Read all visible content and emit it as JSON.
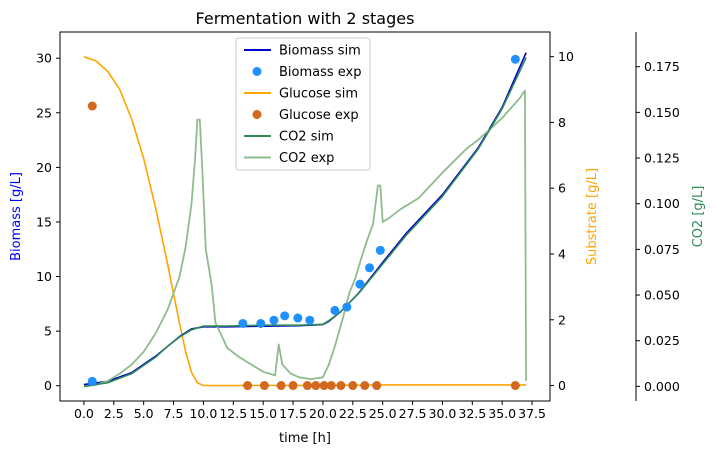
{
  "chart_data": {
    "type": "line",
    "title": "Fermentation with 2 stages",
    "xlabel": "time [h]",
    "xlim": [
      -2,
      39
    ],
    "x_ticks": [
      0.0,
      2.5,
      5.0,
      7.5,
      10.0,
      12.5,
      15.0,
      17.5,
      20.0,
      22.5,
      25.0,
      27.5,
      30.0,
      32.5,
      35.0,
      37.5
    ],
    "x_tick_labels": [
      "0.0",
      "2.5",
      "5.0",
      "7.5",
      "10.0",
      "12.5",
      "15.0",
      "17.5",
      "20.0",
      "22.5",
      "25.0",
      "27.5",
      "30.0",
      "32.5",
      "35.0",
      "37.5"
    ],
    "axes": [
      {
        "id": "biomass",
        "label": "Biomass [g/L]",
        "color": "#0000ff",
        "position": "left",
        "ylim": [
          -1.4,
          32.4
        ],
        "ticks": [
          0,
          5,
          10,
          15,
          20,
          25,
          30
        ],
        "tick_labels": [
          "0",
          "5",
          "10",
          "15",
          "20",
          "25",
          "30"
        ]
      },
      {
        "id": "substrate",
        "label": "Substrate [g/L]",
        "color": "#ffa500",
        "position": "right",
        "ylim": [
          -0.47,
          10.75
        ],
        "ticks": [
          0,
          2,
          4,
          6,
          8,
          10
        ],
        "tick_labels": [
          "0",
          "2",
          "4",
          "6",
          "8",
          "10"
        ]
      },
      {
        "id": "co2",
        "label": "CO2 [g/L]",
        "color": "#2e8b57",
        "position": "right-outer",
        "ylim": [
          -0.008,
          0.194
        ],
        "ticks": [
          0.0,
          0.025,
          0.05,
          0.075,
          0.1,
          0.125,
          0.15,
          0.175
        ],
        "tick_labels": [
          "0.000",
          "0.025",
          "0.050",
          "0.075",
          "0.100",
          "0.125",
          "0.150",
          "0.175"
        ]
      }
    ],
    "series": [
      {
        "name": "Biomass sim",
        "kind": "line",
        "axis": "biomass",
        "color": "#0000cd",
        "x": [
          0,
          2,
          4,
          6,
          7,
          8,
          9,
          10,
          12,
          15,
          18,
          20,
          20.5,
          21.5,
          23,
          25,
          27,
          30,
          33,
          35,
          37
        ],
        "y": [
          0.1,
          0.4,
          1.2,
          2.7,
          3.6,
          4.5,
          5.2,
          5.4,
          5.4,
          5.45,
          5.5,
          5.6,
          5.9,
          6.8,
          8.5,
          11.3,
          14.0,
          17.5,
          21.8,
          25.5,
          30.5
        ]
      },
      {
        "name": "Biomass exp",
        "kind": "scatter",
        "axis": "biomass",
        "color": "#1e90ff",
        "x": [
          0.7,
          13.3,
          14.8,
          15.9,
          16.8,
          17.9,
          18.9,
          21.0,
          22.0,
          23.1,
          23.9,
          24.8,
          36.1
        ],
        "y": [
          0.4,
          5.7,
          5.7,
          6.0,
          6.4,
          6.2,
          6.0,
          6.9,
          7.2,
          9.3,
          10.8,
          12.4,
          29.9
        ]
      },
      {
        "name": "Glucose sim",
        "kind": "line",
        "axis": "substrate",
        "color": "#ffa500",
        "x": [
          0,
          1,
          2,
          3,
          4,
          5,
          6,
          7,
          7.5,
          8,
          8.5,
          9,
          9.5,
          10,
          15,
          20,
          25,
          30,
          37
        ],
        "y": [
          10.0,
          9.87,
          9.55,
          9.0,
          8.1,
          6.9,
          5.4,
          3.7,
          2.8,
          1.9,
          1.05,
          0.4,
          0.08,
          0.0,
          0.0,
          0.0,
          0.02,
          0.02,
          0.02
        ]
      },
      {
        "name": "Glucose exp",
        "kind": "scatter",
        "axis": "substrate",
        "color": "#d2691e",
        "x": [
          0.7,
          13.7,
          15.1,
          16.5,
          17.5,
          18.7,
          19.4,
          20.1,
          20.7,
          21.5,
          22.5,
          23.5,
          24.5,
          36.1
        ],
        "y": [
          8.5,
          0.0,
          0.0,
          0.0,
          0.0,
          0.0,
          0.0,
          0.0,
          0.0,
          0.0,
          0.0,
          0.0,
          0.0,
          0.0
        ]
      },
      {
        "name": "CO2 sim",
        "kind": "line",
        "axis": "co2",
        "color": "#2e8b57",
        "x": [
          0,
          2,
          4,
          6,
          7,
          8,
          9,
          10,
          12,
          15,
          18,
          20,
          20.5,
          21.5,
          23,
          25,
          27,
          30,
          33,
          35,
          37
        ],
        "y": [
          0.0,
          0.002,
          0.007,
          0.016,
          0.022,
          0.027,
          0.031,
          0.033,
          0.033,
          0.0335,
          0.0335,
          0.034,
          0.036,
          0.041,
          0.051,
          0.067,
          0.083,
          0.104,
          0.13,
          0.152,
          0.18
        ]
      },
      {
        "name": "CO2 exp",
        "kind": "line",
        "axis": "co2",
        "color": "#8fbc8f",
        "x": [
          0,
          1,
          2,
          3,
          4,
          5,
          6,
          7,
          8,
          8.5,
          9,
          9.3,
          9.5,
          9.7,
          9.9,
          10.2,
          10.7,
          11,
          12,
          13,
          14,
          15,
          16,
          16.3,
          16.6,
          17.3,
          18,
          19,
          20,
          20.5,
          21,
          21.7,
          22.2,
          22.7,
          23.2,
          23.7,
          24.2,
          24.6,
          24.8,
          25,
          25.5,
          26.5,
          28,
          30,
          32,
          33,
          35,
          36.5,
          36.9,
          37
        ],
        "y": [
          0.0,
          0.0008,
          0.003,
          0.007,
          0.012,
          0.019,
          0.029,
          0.042,
          0.06,
          0.076,
          0.1,
          0.124,
          0.146,
          0.146,
          0.12,
          0.075,
          0.055,
          0.035,
          0.021,
          0.016,
          0.012,
          0.008,
          0.006,
          0.023,
          0.012,
          0.007,
          0.005,
          0.004,
          0.005,
          0.012,
          0.022,
          0.038,
          0.051,
          0.059,
          0.07,
          0.08,
          0.089,
          0.11,
          0.11,
          0.09,
          0.092,
          0.097,
          0.103,
          0.117,
          0.13,
          0.135,
          0.147,
          0.158,
          0.162,
          0.003
        ]
      }
    ],
    "legend": {
      "position": "upper-center",
      "entries": [
        "Biomass sim",
        "Biomass exp",
        "Glucose sim",
        "Glucose exp",
        "CO2 sim",
        "CO2 exp"
      ]
    },
    "grid": false
  }
}
